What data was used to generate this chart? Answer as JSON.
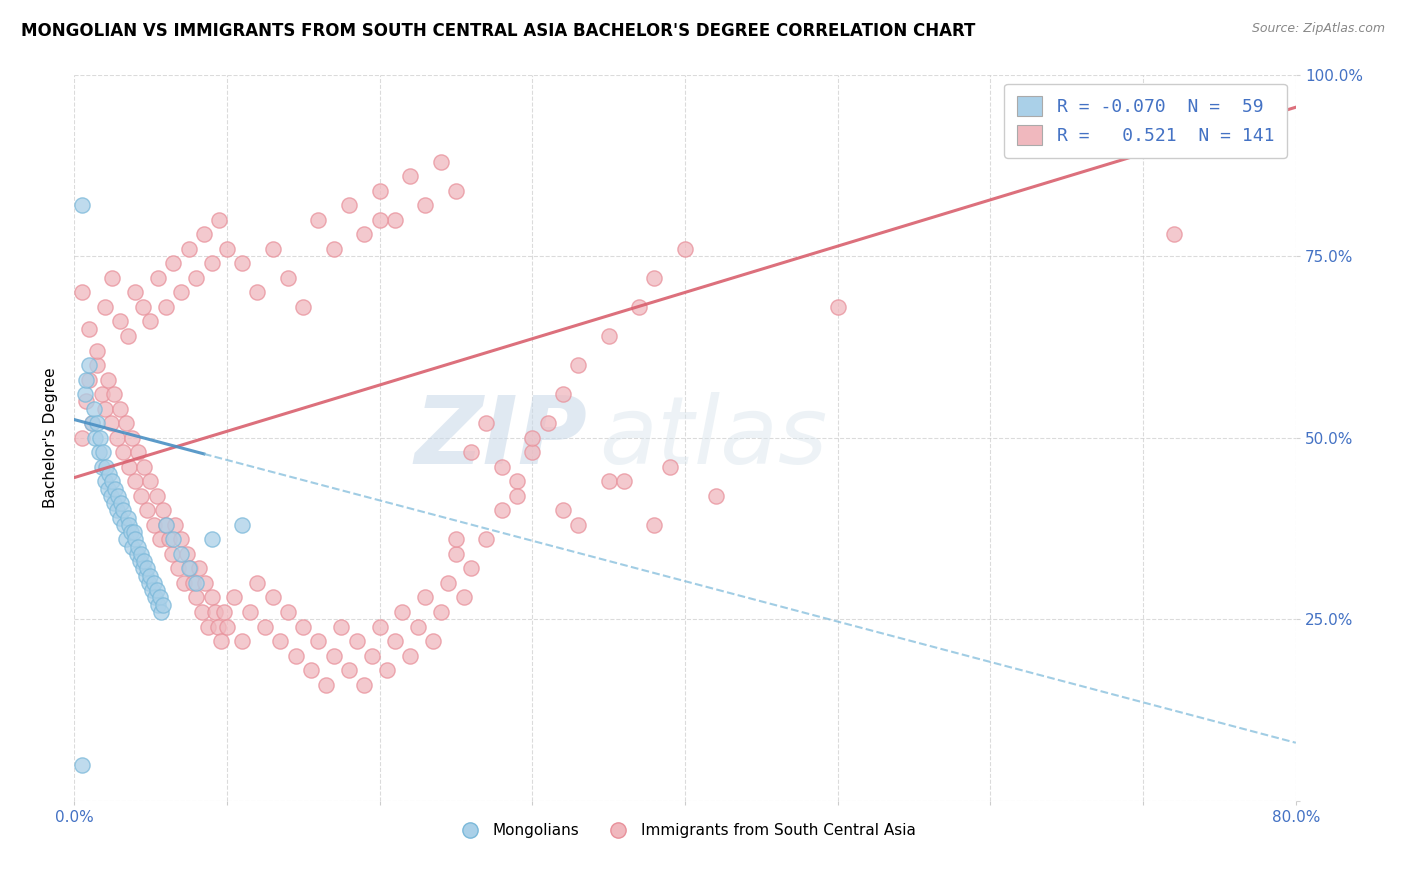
{
  "title": "MONGOLIAN VS IMMIGRANTS FROM SOUTH CENTRAL ASIA BACHELOR'S DEGREE CORRELATION CHART",
  "source": "Source: ZipAtlas.com",
  "ylabel_left": "Bachelor's Degree",
  "x_min": 0.0,
  "x_max": 0.8,
  "y_min": 0.0,
  "y_max": 1.0,
  "x_ticks": [
    0.0,
    0.1,
    0.2,
    0.3,
    0.4,
    0.5,
    0.6,
    0.7,
    0.8
  ],
  "x_tick_labels": [
    "0.0%",
    "",
    "",
    "",
    "",
    "",
    "",
    "",
    "80.0%"
  ],
  "y_tick_labels_right": [
    "",
    "25.0%",
    "50.0%",
    "75.0%",
    "100.0%"
  ],
  "y_ticks_right": [
    0.0,
    0.25,
    0.5,
    0.75,
    1.0
  ],
  "blue_R": -0.07,
  "blue_N": 59,
  "pink_R": 0.521,
  "pink_N": 141,
  "blue_color": "#7ab8d9",
  "pink_color": "#e8909a",
  "blue_fill": "#aad0e8",
  "pink_fill": "#f0b8be",
  "trend_blue_solid_color": "#4a90c4",
  "trend_blue_dash_color": "#7ab8d9",
  "trend_pink_color": "#d9606e",
  "legend_label_blue": "Mongolians",
  "legend_label_pink": "Immigrants from South Central Asia",
  "watermark_zip": "ZIP",
  "watermark_atlas": "atlas",
  "title_fontsize": 12,
  "label_fontsize": 11,
  "tick_fontsize": 11,
  "blue_trend_x0": 0.0,
  "blue_trend_y0": 0.525,
  "blue_trend_x1": 0.8,
  "blue_trend_y1": 0.08,
  "blue_trend_solid_end": 0.085,
  "pink_trend_x0": 0.0,
  "pink_trend_y0": 0.445,
  "pink_trend_x1": 0.8,
  "pink_trend_y1": 0.955,
  "blue_scatter_x": [
    0.005,
    0.007,
    0.008,
    0.01,
    0.012,
    0.013,
    0.014,
    0.015,
    0.016,
    0.017,
    0.018,
    0.019,
    0.02,
    0.021,
    0.022,
    0.023,
    0.024,
    0.025,
    0.026,
    0.027,
    0.028,
    0.029,
    0.03,
    0.031,
    0.032,
    0.033,
    0.034,
    0.035,
    0.036,
    0.037,
    0.038,
    0.039,
    0.04,
    0.041,
    0.042,
    0.043,
    0.044,
    0.045,
    0.046,
    0.047,
    0.048,
    0.049,
    0.05,
    0.051,
    0.052,
    0.053,
    0.054,
    0.055,
    0.056,
    0.057,
    0.058,
    0.06,
    0.065,
    0.07,
    0.075,
    0.08,
    0.09,
    0.11,
    0.005
  ],
  "blue_scatter_y": [
    0.82,
    0.56,
    0.58,
    0.6,
    0.52,
    0.54,
    0.5,
    0.52,
    0.48,
    0.5,
    0.46,
    0.48,
    0.44,
    0.46,
    0.43,
    0.45,
    0.42,
    0.44,
    0.41,
    0.43,
    0.4,
    0.42,
    0.39,
    0.41,
    0.4,
    0.38,
    0.36,
    0.39,
    0.38,
    0.37,
    0.35,
    0.37,
    0.36,
    0.34,
    0.35,
    0.33,
    0.34,
    0.32,
    0.33,
    0.31,
    0.32,
    0.3,
    0.31,
    0.29,
    0.3,
    0.28,
    0.29,
    0.27,
    0.28,
    0.26,
    0.27,
    0.38,
    0.36,
    0.34,
    0.32,
    0.3,
    0.36,
    0.38,
    0.05
  ],
  "pink_scatter_x": [
    0.005,
    0.008,
    0.01,
    0.012,
    0.015,
    0.018,
    0.02,
    0.022,
    0.024,
    0.026,
    0.028,
    0.03,
    0.032,
    0.034,
    0.036,
    0.038,
    0.04,
    0.042,
    0.044,
    0.046,
    0.048,
    0.05,
    0.052,
    0.054,
    0.056,
    0.058,
    0.06,
    0.062,
    0.064,
    0.066,
    0.068,
    0.07,
    0.072,
    0.074,
    0.076,
    0.078,
    0.08,
    0.082,
    0.084,
    0.086,
    0.088,
    0.09,
    0.092,
    0.094,
    0.096,
    0.098,
    0.1,
    0.105,
    0.11,
    0.115,
    0.12,
    0.125,
    0.13,
    0.135,
    0.14,
    0.145,
    0.15,
    0.155,
    0.16,
    0.165,
    0.17,
    0.175,
    0.18,
    0.185,
    0.19,
    0.195,
    0.2,
    0.205,
    0.21,
    0.215,
    0.22,
    0.225,
    0.23,
    0.235,
    0.24,
    0.245,
    0.25,
    0.255,
    0.26,
    0.27,
    0.28,
    0.29,
    0.3,
    0.31,
    0.32,
    0.33,
    0.35,
    0.37,
    0.38,
    0.4,
    0.005,
    0.01,
    0.015,
    0.02,
    0.025,
    0.03,
    0.035,
    0.04,
    0.045,
    0.05,
    0.055,
    0.06,
    0.065,
    0.07,
    0.075,
    0.08,
    0.085,
    0.09,
    0.095,
    0.1,
    0.11,
    0.12,
    0.13,
    0.14,
    0.15,
    0.16,
    0.17,
    0.18,
    0.19,
    0.2,
    0.21,
    0.22,
    0.23,
    0.24,
    0.25,
    0.72,
    0.5,
    0.38,
    0.42,
    0.3,
    0.35,
    0.28,
    0.32,
    0.26,
    0.27,
    0.25,
    0.29,
    0.33,
    0.36,
    0.39,
    0.2
  ],
  "pink_scatter_y": [
    0.5,
    0.55,
    0.58,
    0.52,
    0.6,
    0.56,
    0.54,
    0.58,
    0.52,
    0.56,
    0.5,
    0.54,
    0.48,
    0.52,
    0.46,
    0.5,
    0.44,
    0.48,
    0.42,
    0.46,
    0.4,
    0.44,
    0.38,
    0.42,
    0.36,
    0.4,
    0.38,
    0.36,
    0.34,
    0.38,
    0.32,
    0.36,
    0.3,
    0.34,
    0.32,
    0.3,
    0.28,
    0.32,
    0.26,
    0.3,
    0.24,
    0.28,
    0.26,
    0.24,
    0.22,
    0.26,
    0.24,
    0.28,
    0.22,
    0.26,
    0.3,
    0.24,
    0.28,
    0.22,
    0.26,
    0.2,
    0.24,
    0.18,
    0.22,
    0.16,
    0.2,
    0.24,
    0.18,
    0.22,
    0.16,
    0.2,
    0.24,
    0.18,
    0.22,
    0.26,
    0.2,
    0.24,
    0.28,
    0.22,
    0.26,
    0.3,
    0.34,
    0.28,
    0.32,
    0.36,
    0.4,
    0.44,
    0.48,
    0.52,
    0.56,
    0.6,
    0.64,
    0.68,
    0.72,
    0.76,
    0.7,
    0.65,
    0.62,
    0.68,
    0.72,
    0.66,
    0.64,
    0.7,
    0.68,
    0.66,
    0.72,
    0.68,
    0.74,
    0.7,
    0.76,
    0.72,
    0.78,
    0.74,
    0.8,
    0.76,
    0.74,
    0.7,
    0.76,
    0.72,
    0.68,
    0.8,
    0.76,
    0.82,
    0.78,
    0.84,
    0.8,
    0.86,
    0.82,
    0.88,
    0.84,
    0.78,
    0.68,
    0.38,
    0.42,
    0.5,
    0.44,
    0.46,
    0.4,
    0.48,
    0.52,
    0.36,
    0.42,
    0.38,
    0.44,
    0.46,
    0.8
  ]
}
